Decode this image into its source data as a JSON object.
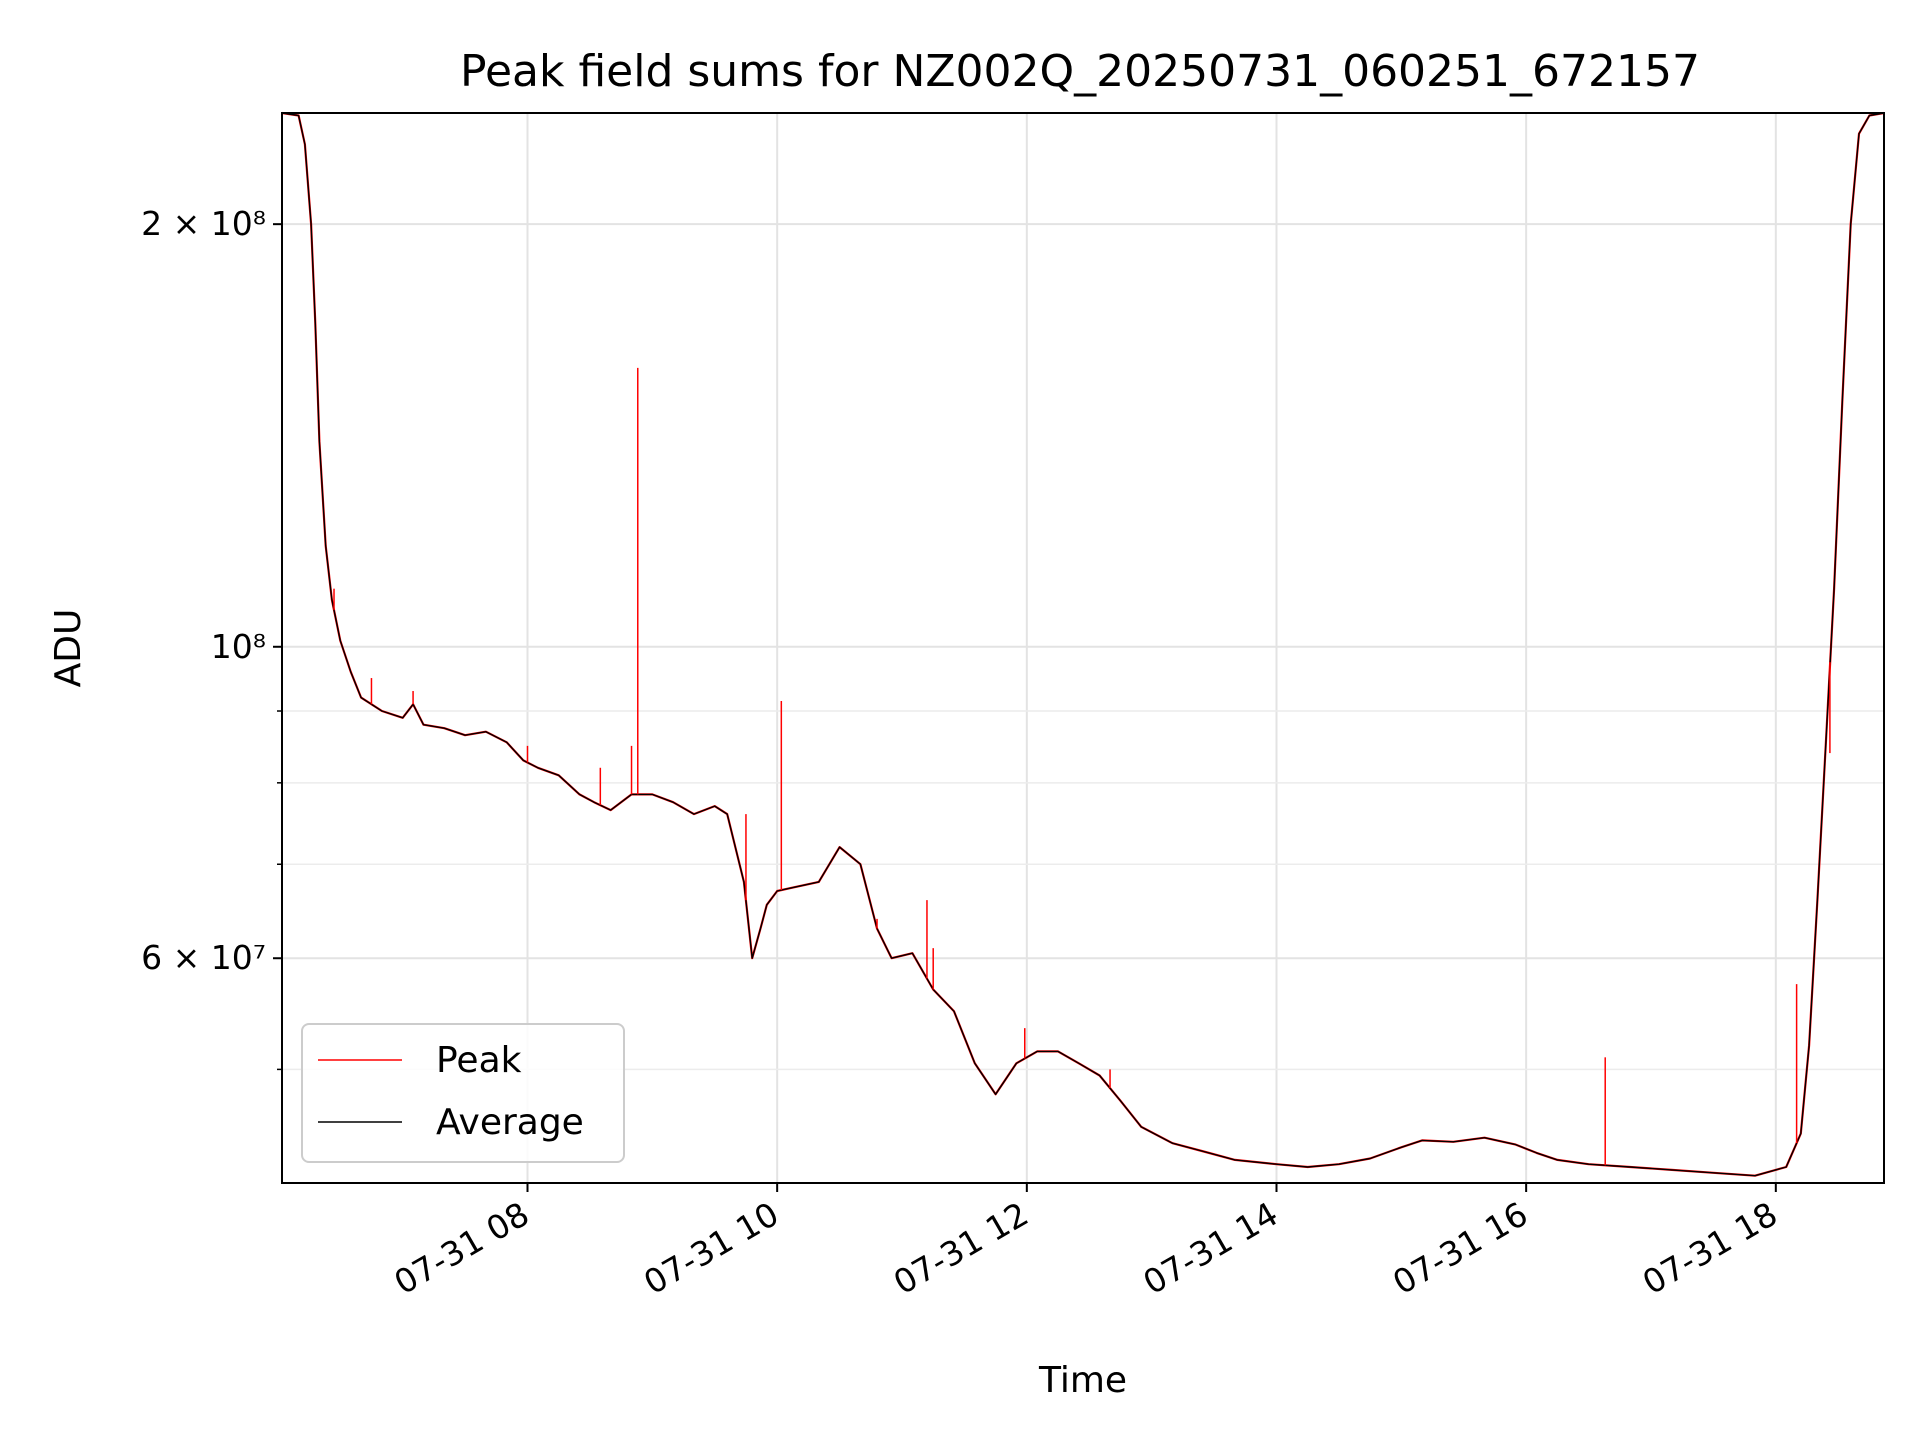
{
  "chart_data": {
    "type": "line",
    "title": "Peak field sums for NZ002Q_20250731_060251_672157",
    "xlabel": "Time",
    "ylabel": "ADU",
    "y_scale": "log",
    "ylim": [
      41500000,
      240000000
    ],
    "xlim": [
      "2025-07-31 06:02",
      "2025-07-31 18:52"
    ],
    "grid": true,
    "legend_position": "lower-left",
    "x_ticks": [
      {
        "t": "2025-07-31 08:00",
        "label": "07-31 08"
      },
      {
        "t": "2025-07-31 10:00",
        "label": "07-31 10"
      },
      {
        "t": "2025-07-31 12:00",
        "label": "07-31 12"
      },
      {
        "t": "2025-07-31 14:00",
        "label": "07-31 14"
      },
      {
        "t": "2025-07-31 16:00",
        "label": "07-31 16"
      },
      {
        "t": "2025-07-31 18:00",
        "label": "07-31 18"
      }
    ],
    "y_ticks_major": [
      {
        "value": 200000000,
        "label": "2 × 10⁸"
      },
      {
        "value": 100000000,
        "label": "10⁸"
      },
      {
        "value": 60000000,
        "label": "6 × 10⁷"
      }
    ],
    "y_ticks_minor": [
      90000000,
      80000000,
      70000000,
      50000000
    ],
    "series": [
      {
        "name": "Average",
        "color": "#000000",
        "points": [
          [
            "2025-07-31 06:02",
            240000000
          ],
          [
            "2025-07-31 06:10",
            239000000
          ],
          [
            "2025-07-31 06:13",
            228000000
          ],
          [
            "2025-07-31 06:16",
            200000000
          ],
          [
            "2025-07-31 06:18",
            170000000
          ],
          [
            "2025-07-31 06:20",
            140000000
          ],
          [
            "2025-07-31 06:23",
            118000000
          ],
          [
            "2025-07-31 06:26",
            108000000
          ],
          [
            "2025-07-31 06:30",
            101000000
          ],
          [
            "2025-07-31 06:35",
            96000000
          ],
          [
            "2025-07-31 06:40",
            92000000
          ],
          [
            "2025-07-31 06:50",
            90000000
          ],
          [
            "2025-07-31 07:00",
            89000000
          ],
          [
            "2025-07-31 07:05",
            91000000
          ],
          [
            "2025-07-31 07:10",
            88000000
          ],
          [
            "2025-07-31 07:20",
            87500000
          ],
          [
            "2025-07-31 07:30",
            86500000
          ],
          [
            "2025-07-31 07:40",
            87000000
          ],
          [
            "2025-07-31 07:50",
            85500000
          ],
          [
            "2025-07-31 07:58",
            83000000
          ],
          [
            "2025-07-31 08:05",
            82000000
          ],
          [
            "2025-07-31 08:15",
            81000000
          ],
          [
            "2025-07-31 08:25",
            78500000
          ],
          [
            "2025-07-31 08:32",
            77500000
          ],
          [
            "2025-07-31 08:40",
            76500000
          ],
          [
            "2025-07-31 08:50",
            78500000
          ],
          [
            "2025-07-31 09:00",
            78500000
          ],
          [
            "2025-07-31 09:10",
            77500000
          ],
          [
            "2025-07-31 09:20",
            76000000
          ],
          [
            "2025-07-31 09:30",
            77000000
          ],
          [
            "2025-07-31 09:36",
            76000000
          ],
          [
            "2025-07-31 09:44",
            68000000
          ],
          [
            "2025-07-31 09:48",
            60000000
          ],
          [
            "2025-07-31 09:52",
            63000000
          ],
          [
            "2025-07-31 09:55",
            65500000
          ],
          [
            "2025-07-31 10:00",
            67000000
          ],
          [
            "2025-07-31 10:10",
            67500000
          ],
          [
            "2025-07-31 10:20",
            68000000
          ],
          [
            "2025-07-31 10:30",
            72000000
          ],
          [
            "2025-07-31 10:40",
            70000000
          ],
          [
            "2025-07-31 10:48",
            63000000
          ],
          [
            "2025-07-31 10:55",
            60000000
          ],
          [
            "2025-07-31 11:05",
            60500000
          ],
          [
            "2025-07-31 11:15",
            57000000
          ],
          [
            "2025-07-31 11:25",
            55000000
          ],
          [
            "2025-07-31 11:35",
            50500000
          ],
          [
            "2025-07-31 11:45",
            48000000
          ],
          [
            "2025-07-31 11:55",
            50500000
          ],
          [
            "2025-07-31 12:05",
            51500000
          ],
          [
            "2025-07-31 12:15",
            51500000
          ],
          [
            "2025-07-31 12:25",
            50500000
          ],
          [
            "2025-07-31 12:35",
            49500000
          ],
          [
            "2025-07-31 12:45",
            47500000
          ],
          [
            "2025-07-31 12:55",
            45500000
          ],
          [
            "2025-07-31 13:10",
            44300000
          ],
          [
            "2025-07-31 13:25",
            43700000
          ],
          [
            "2025-07-31 13:40",
            43100000
          ],
          [
            "2025-07-31 14:00",
            42800000
          ],
          [
            "2025-07-31 14:15",
            42600000
          ],
          [
            "2025-07-31 14:30",
            42800000
          ],
          [
            "2025-07-31 14:45",
            43200000
          ],
          [
            "2025-07-31 15:00",
            44000000
          ],
          [
            "2025-07-31 15:10",
            44500000
          ],
          [
            "2025-07-31 15:25",
            44400000
          ],
          [
            "2025-07-31 15:40",
            44700000
          ],
          [
            "2025-07-31 15:55",
            44200000
          ],
          [
            "2025-07-31 16:05",
            43600000
          ],
          [
            "2025-07-31 16:15",
            43100000
          ],
          [
            "2025-07-31 16:30",
            42800000
          ],
          [
            "2025-07-31 16:50",
            42600000
          ],
          [
            "2025-07-31 17:10",
            42400000
          ],
          [
            "2025-07-31 17:30",
            42200000
          ],
          [
            "2025-07-31 17:50",
            42000000
          ],
          [
            "2025-07-31 18:05",
            42600000
          ],
          [
            "2025-07-31 18:12",
            45000000
          ],
          [
            "2025-07-31 18:16",
            52000000
          ],
          [
            "2025-07-31 18:20",
            66000000
          ],
          [
            "2025-07-31 18:24",
            85000000
          ],
          [
            "2025-07-31 18:28",
            110000000
          ],
          [
            "2025-07-31 18:32",
            150000000
          ],
          [
            "2025-07-31 18:36",
            200000000
          ],
          [
            "2025-07-31 18:40",
            232000000
          ],
          [
            "2025-07-31 18:45",
            239000000
          ],
          [
            "2025-07-31 18:52",
            240000000
          ]
        ]
      },
      {
        "name": "Peak",
        "color": "#ff0000",
        "spikes": [
          [
            "2025-07-31 06:27",
            110000000
          ],
          [
            "2025-07-31 06:45",
            95000000
          ],
          [
            "2025-07-31 07:05",
            93000000
          ],
          [
            "2025-07-31 08:00",
            85000000
          ],
          [
            "2025-07-31 08:35",
            82000000
          ],
          [
            "2025-07-31 08:50",
            85000000
          ],
          [
            "2025-07-31 08:53",
            158000000
          ],
          [
            "2025-07-31 09:45",
            76000000
          ],
          [
            "2025-07-31 10:02",
            91500000
          ],
          [
            "2025-07-31 10:48",
            64000000
          ],
          [
            "2025-07-31 11:12",
            66000000
          ],
          [
            "2025-07-31 11:15",
            61000000
          ],
          [
            "2025-07-31 11:59",
            53500000
          ],
          [
            "2025-07-31 12:40",
            50000000
          ],
          [
            "2025-07-31 16:38",
            51000000
          ],
          [
            "2025-07-31 18:10",
            57500000
          ],
          [
            "2025-07-31 18:26",
            84000000
          ]
        ]
      }
    ]
  }
}
